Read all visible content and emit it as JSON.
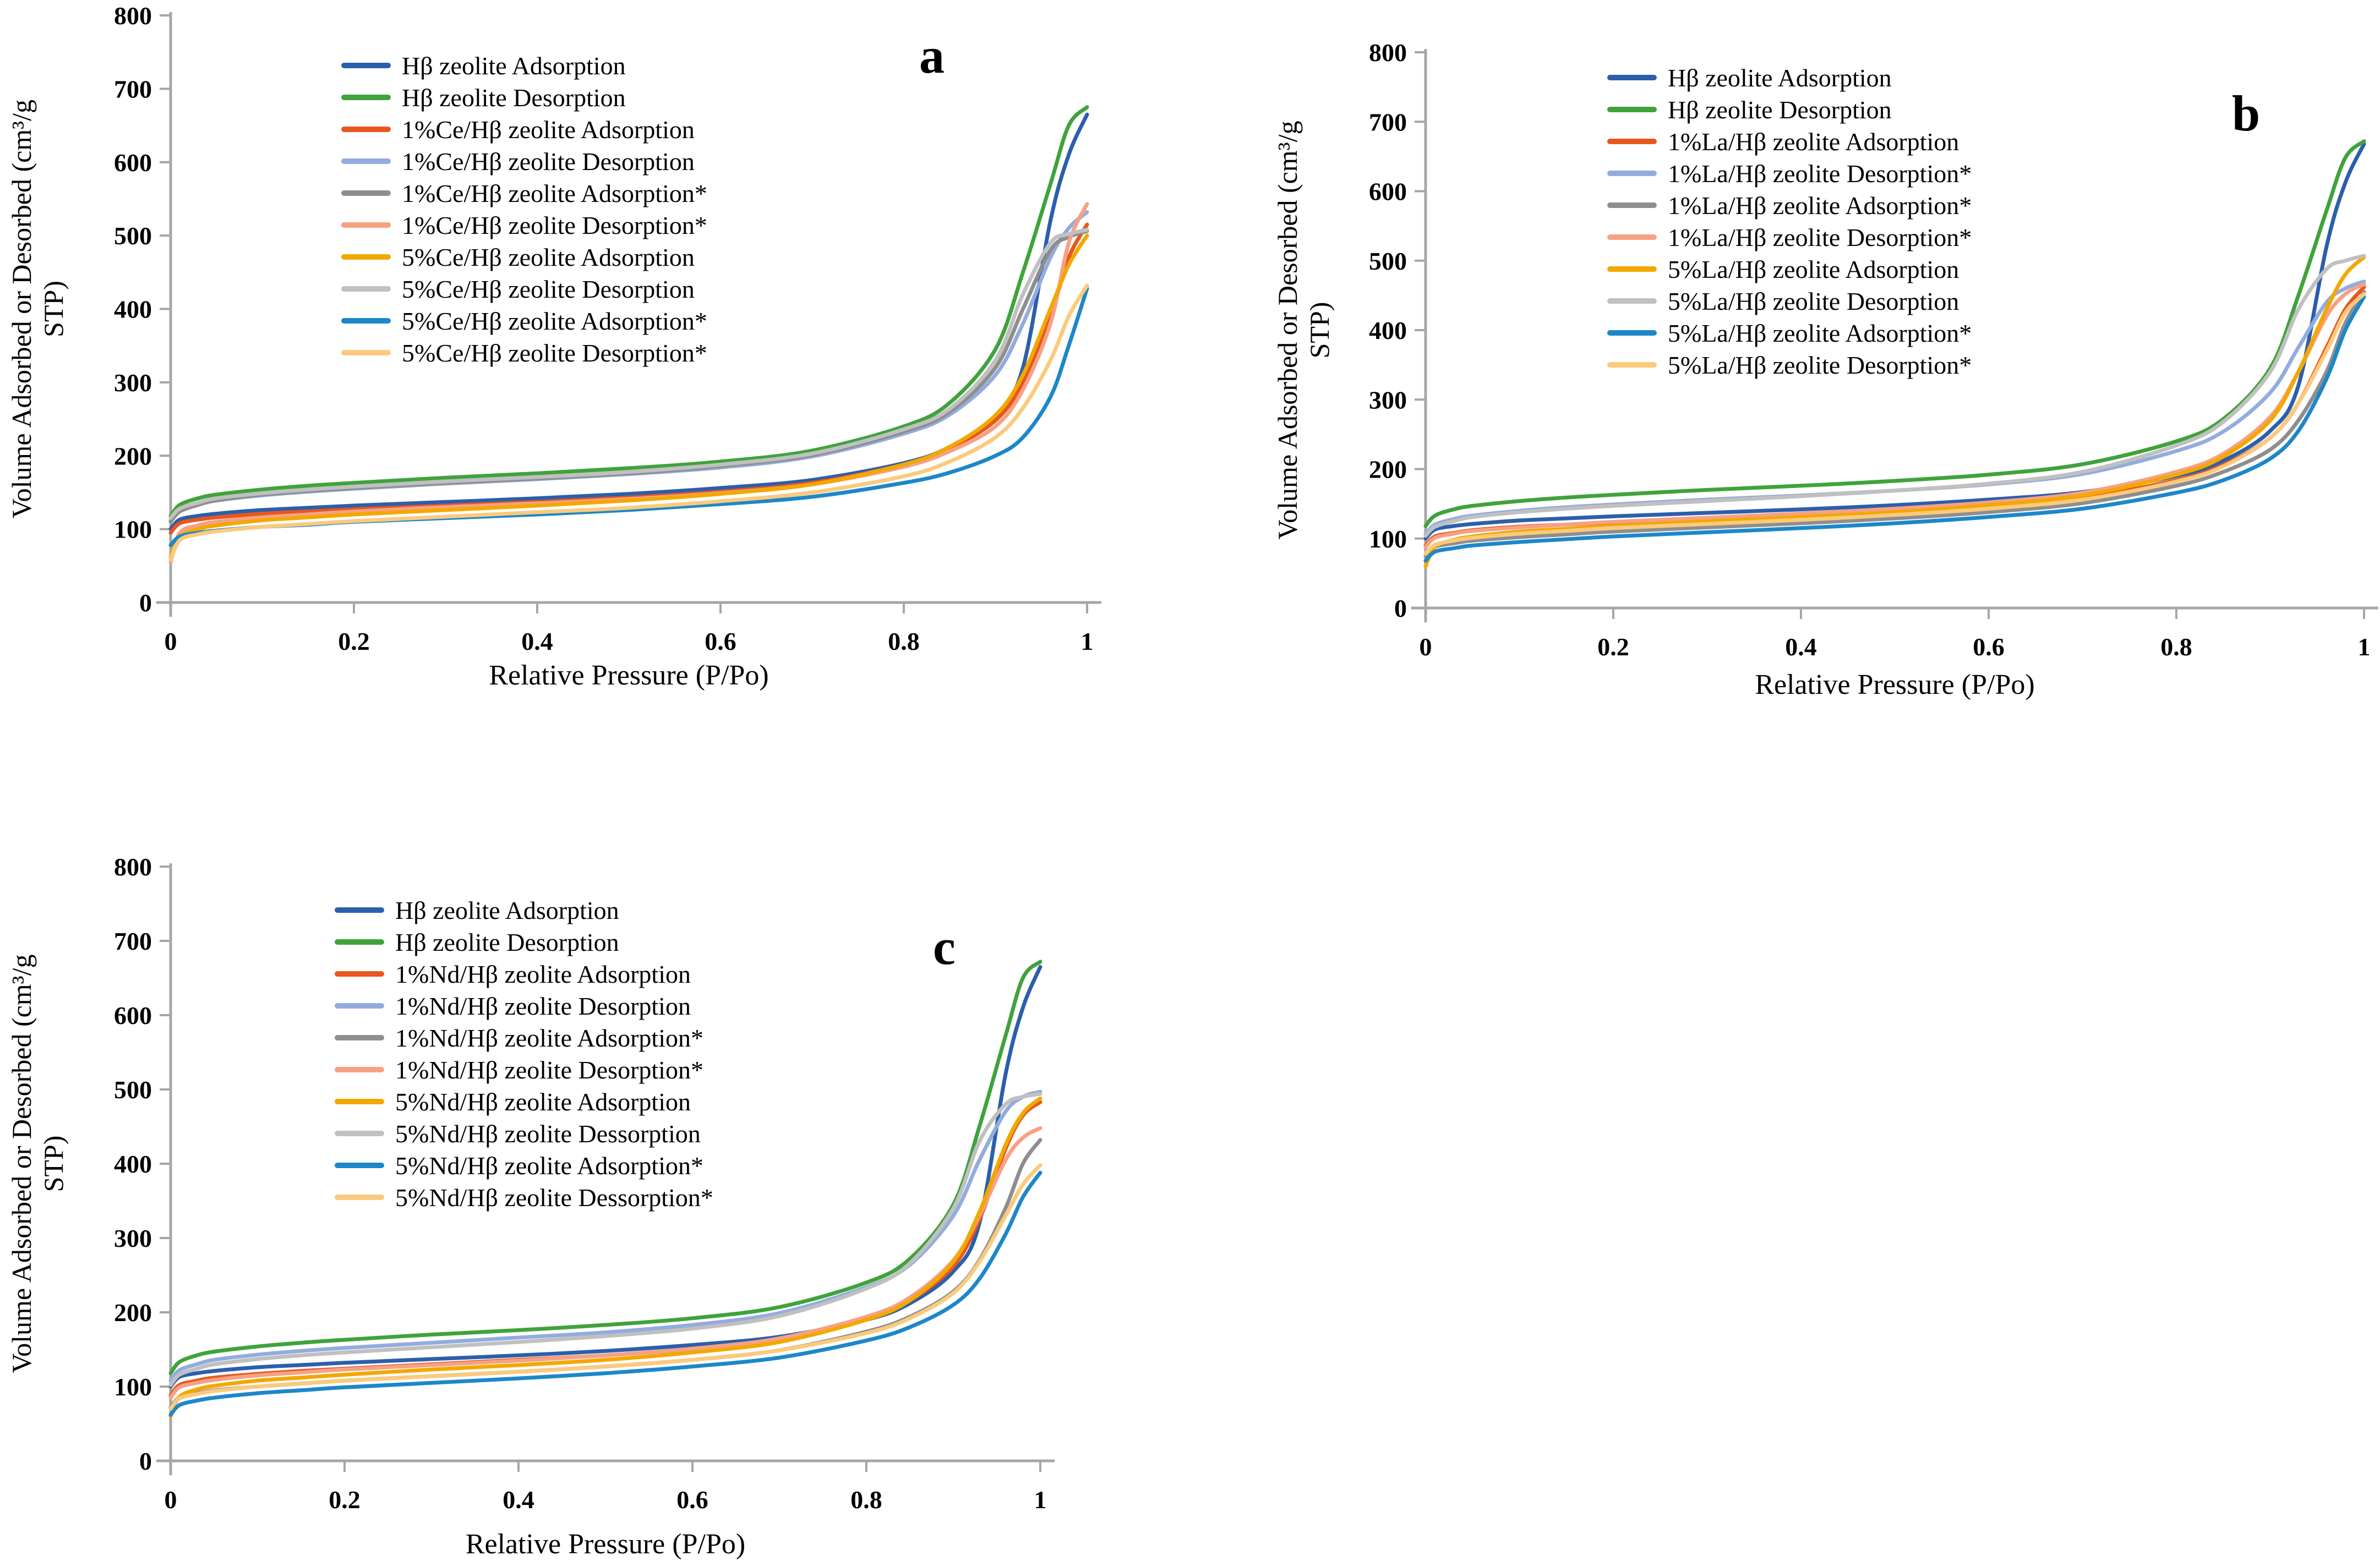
{
  "figure": {
    "background": "#FFFFFF",
    "axis_color": "#A6A6A6",
    "text_color": "#000000"
  },
  "chart_data": [
    {
      "panel_label": "a",
      "type": "line",
      "title": "",
      "xlabel": "Relative Pressure (P/Po)",
      "ylabel": "Volume Adsorbed or Desorbed (cm³/g STP)",
      "ylabel_lines": [
        "Volume Adsorbed or Desorbed (cm³/g",
        "STP)"
      ],
      "xlim": [
        0,
        1
      ],
      "ylim": [
        0,
        800
      ],
      "xticks": [
        0,
        0.2,
        0.4,
        0.6,
        0.8,
        1
      ],
      "yticks": [
        0,
        100,
        200,
        300,
        400,
        500,
        600,
        700,
        800
      ],
      "grid": false,
      "legend_position": "upper left inside",
      "x": [
        0,
        0.01,
        0.03,
        0.05,
        0.1,
        0.15,
        0.2,
        0.3,
        0.4,
        0.5,
        0.6,
        0.7,
        0.8,
        0.85,
        0.9,
        0.93,
        0.96,
        0.98,
        1
      ],
      "series": [
        {
          "name": "Hβ zeolite Adsorption",
          "color": "#2B5FAC",
          "values": [
            100,
            113,
            118,
            121,
            126,
            129,
            132,
            137,
            142,
            148,
            156,
            167,
            190,
            212,
            255,
            320,
            520,
            610,
            665
          ]
        },
        {
          "name": "Hβ zeolite Desorption",
          "color": "#3FA33C",
          "values": [
            118,
            133,
            142,
            147,
            154,
            159,
            163,
            170,
            176,
            183,
            192,
            207,
            240,
            272,
            345,
            450,
            570,
            650,
            675
          ]
        },
        {
          "name": "1%Ce/Hβ zeolite Adsorption",
          "color": "#E8571E",
          "values": [
            95,
            108,
            113,
            116,
            121,
            124,
            127,
            132,
            137,
            143,
            151,
            163,
            188,
            210,
            248,
            300,
            390,
            470,
            515
          ]
        },
        {
          "name": "1%Ce/Hβ zeolite Desorption",
          "color": "#93ACDE",
          "values": [
            112,
            126,
            134,
            139,
            146,
            151,
            155,
            162,
            168,
            175,
            184,
            199,
            230,
            256,
            310,
            380,
            470,
            510,
            532
          ]
        },
        {
          "name": "1%Ce/Hβ zeolite Adsorption*",
          "color": "#8E8E8E",
          "values": [
            110,
            124,
            133,
            139,
            147,
            152,
            156,
            163,
            169,
            176,
            186,
            201,
            233,
            260,
            320,
            400,
            480,
            498,
            506
          ]
        },
        {
          "name": "1%Ce/Hβ zeolite Desorption*",
          "color": "#F7A183",
          "values": [
            55,
            95,
            105,
            110,
            116,
            120,
            124,
            130,
            135,
            141,
            149,
            161,
            185,
            206,
            240,
            290,
            380,
            490,
            543
          ]
        },
        {
          "name": "5%Ce/Hβ zeolite Adsorption",
          "color": "#F2A800",
          "values": [
            62,
            90,
            100,
            105,
            112,
            116,
            120,
            126,
            132,
            139,
            148,
            161,
            188,
            212,
            255,
            310,
            400,
            460,
            500
          ]
        },
        {
          "name": "5%Ce/Hβ zeolite Desorption",
          "color": "#C0C0C0",
          "values": [
            115,
            128,
            136,
            142,
            149,
            154,
            158,
            165,
            171,
            178,
            188,
            203,
            236,
            264,
            330,
            420,
            490,
            502,
            508
          ]
        },
        {
          "name": "5%Ce/Hβ zeolite Adsorption*",
          "color": "#1C87C9",
          "values": [
            78,
            90,
            95,
            98,
            103,
            106,
            110,
            115,
            120,
            126,
            134,
            144,
            163,
            177,
            200,
            225,
            280,
            350,
            428
          ]
        },
        {
          "name": "5%Ce/Hβ zeolite Desorption*",
          "color": "#FBCA7D",
          "values": [
            58,
            85,
            93,
            97,
            103,
            107,
            111,
            117,
            123,
            129,
            138,
            150,
            172,
            192,
            225,
            265,
            330,
            390,
            432
          ]
        }
      ]
    },
    {
      "panel_label": "b",
      "type": "line",
      "title": "",
      "xlabel": "Relative Pressure (P/Po)",
      "ylabel": "Volume Adsorbed or Desorbed (cm³/g STP)",
      "ylabel_lines": [
        "Volume Adsorbed or Desorbed (cm³/g",
        "STP)"
      ],
      "xlim": [
        0,
        1
      ],
      "ylim": [
        0,
        800
      ],
      "xticks": [
        0,
        0.2,
        0.4,
        0.6,
        0.8,
        1
      ],
      "yticks": [
        0,
        100,
        200,
        300,
        400,
        500,
        600,
        700,
        800
      ],
      "grid": false,
      "legend_position": "upper left inside",
      "x": [
        0,
        0.01,
        0.03,
        0.05,
        0.1,
        0.15,
        0.2,
        0.3,
        0.4,
        0.5,
        0.6,
        0.7,
        0.8,
        0.85,
        0.9,
        0.93,
        0.96,
        0.98,
        1
      ],
      "series": [
        {
          "name": "Hβ zeolite Adsorption",
          "color": "#2B5FAC",
          "values": [
            100,
            113,
            118,
            121,
            126,
            129,
            132,
            137,
            142,
            148,
            156,
            167,
            190,
            212,
            255,
            320,
            520,
            612,
            668
          ]
        },
        {
          "name": "Hβ zeolite Desorption",
          "color": "#3FA33C",
          "values": [
            118,
            133,
            142,
            147,
            154,
            159,
            163,
            170,
            176,
            183,
            192,
            207,
            240,
            272,
            345,
            450,
            572,
            648,
            672
          ]
        },
        {
          "name": "1%La/Hβ zeolite Adsorption",
          "color": "#E8571E",
          "values": [
            90,
            103,
            108,
            112,
            117,
            120,
            123,
            128,
            133,
            139,
            147,
            159,
            184,
            206,
            245,
            295,
            375,
            430,
            462
          ]
        },
        {
          "name": "1%La/Hβ zeolite Desorption*",
          "color": "#93ACDE",
          "values": [
            106,
            120,
            128,
            133,
            140,
            145,
            149,
            156,
            162,
            169,
            178,
            193,
            226,
            254,
            310,
            375,
            440,
            460,
            470
          ]
        },
        {
          "name": "1%La/Hβ zeolite Adsorption*",
          "color": "#8E8E8E",
          "values": [
            75,
            88,
            93,
            97,
            102,
            106,
            110,
            116,
            122,
            129,
            138,
            151,
            176,
            196,
            228,
            270,
            340,
            410,
            455
          ]
        },
        {
          "name": "1%La/Hβ zeolite Desorption*",
          "color": "#F7A183",
          "values": [
            88,
            101,
            107,
            111,
            116,
            120,
            124,
            130,
            136,
            143,
            152,
            166,
            196,
            222,
            275,
            340,
            420,
            452,
            466
          ]
        },
        {
          "name": "5%La/Hβ zeolite Adsorption",
          "color": "#F2A800",
          "values": [
            60,
            88,
            98,
            103,
            110,
            114,
            118,
            125,
            131,
            138,
            148,
            162,
            192,
            218,
            270,
            340,
            430,
            480,
            505
          ]
        },
        {
          "name": "5%La/Hβ zeolite Desorption",
          "color": "#C0C0C0",
          "values": [
            104,
            117,
            125,
            131,
            138,
            143,
            147,
            154,
            161,
            169,
            179,
            196,
            234,
            268,
            340,
            430,
            488,
            500,
            507
          ]
        },
        {
          "name": "5%La/Hβ zeolite Adsorption*",
          "color": "#1C87C9",
          "values": [
            68,
            81,
            86,
            90,
            95,
            99,
            103,
            109,
            115,
            122,
            131,
            143,
            166,
            184,
            215,
            255,
            330,
            400,
            448
          ]
        },
        {
          "name": "5%La/Hβ zeolite Desorption*",
          "color": "#FBCA7D",
          "values": [
            78,
            91,
            97,
            101,
            107,
            111,
            115,
            121,
            127,
            134,
            143,
            156,
            182,
            204,
            245,
            295,
            370,
            425,
            452
          ]
        }
      ]
    },
    {
      "panel_label": "c",
      "type": "line",
      "title": "",
      "xlabel": "Relative Pressure (P/Po)",
      "ylabel": "Volume Adsorbed or Desorbed (cm³/g STP)",
      "ylabel_lines": [
        "Volume Adsorbed or Desorbed (cm³/g",
        "STP)"
      ],
      "xlim": [
        0,
        1
      ],
      "ylim": [
        0,
        800
      ],
      "xticks": [
        0,
        0.2,
        0.4,
        0.6,
        0.8,
        1
      ],
      "yticks": [
        0,
        100,
        200,
        300,
        400,
        500,
        600,
        700,
        800
      ],
      "grid": false,
      "legend_position": "upper left inside",
      "x": [
        0,
        0.01,
        0.03,
        0.05,
        0.1,
        0.15,
        0.2,
        0.3,
        0.4,
        0.5,
        0.6,
        0.7,
        0.8,
        0.85,
        0.9,
        0.93,
        0.96,
        0.98,
        1
      ],
      "series": [
        {
          "name": "Hβ zeolite Adsorption",
          "color": "#2B5FAC",
          "values": [
            100,
            113,
            118,
            121,
            126,
            129,
            132,
            137,
            142,
            148,
            156,
            167,
            190,
            212,
            255,
            320,
            520,
            610,
            665
          ]
        },
        {
          "name": "Hβ zeolite Desorption",
          "color": "#3FA33C",
          "values": [
            118,
            133,
            142,
            147,
            154,
            159,
            163,
            170,
            176,
            183,
            192,
            207,
            240,
            272,
            345,
            450,
            572,
            650,
            672
          ]
        },
        {
          "name": "1%Nd/Hβ zeolite Adsorption",
          "color": "#E8571E",
          "values": [
            88,
            102,
            108,
            112,
            117,
            121,
            124,
            130,
            136,
            142,
            151,
            164,
            192,
            216,
            262,
            325,
            420,
            465,
            483
          ]
        },
        {
          "name": "1%Nd/Hβ zeolite Desorption",
          "color": "#93ACDE",
          "values": [
            108,
            122,
            130,
            136,
            143,
            148,
            152,
            159,
            166,
            173,
            183,
            199,
            234,
            264,
            330,
            405,
            470,
            490,
            497
          ]
        },
        {
          "name": "1%Nd/Hβ zeolite Adsorption*",
          "color": "#8E8E8E",
          "values": [
            72,
            85,
            91,
            95,
            100,
            104,
            108,
            114,
            120,
            127,
            136,
            149,
            174,
            194,
            228,
            270,
            340,
            400,
            432
          ]
        },
        {
          "name": "1%Nd/Hβ zeolite Desorption*",
          "color": "#F7A183",
          "values": [
            85,
            99,
            105,
            109,
            115,
            119,
            123,
            129,
            135,
            142,
            151,
            165,
            194,
            220,
            270,
            330,
            405,
            435,
            448
          ]
        },
        {
          "name": "5%Nd/Hβ zeolite Adsorption",
          "color": "#F2A800",
          "values": [
            60,
            86,
            96,
            101,
            108,
            112,
            116,
            123,
            129,
            136,
            146,
            160,
            190,
            216,
            268,
            335,
            425,
            468,
            488
          ]
        },
        {
          "name": "5%Nd/Hβ zeolite Dessorption",
          "color": "#C0C0C0",
          "values": [
            102,
            116,
            124,
            130,
            137,
            142,
            146,
            153,
            160,
            168,
            178,
            195,
            232,
            266,
            340,
            430,
            480,
            490,
            494
          ]
        },
        {
          "name": "5%Nd/Hβ zeolite Adsorption*",
          "color": "#1C87C9",
          "values": [
            62,
            75,
            81,
            85,
            91,
            95,
            99,
            105,
            111,
            118,
            127,
            139,
            162,
            180,
            210,
            245,
            305,
            355,
            388
          ]
        },
        {
          "name": "5%Nd/Hβ zeolite Dessorption*",
          "color": "#FBCA7D",
          "values": [
            70,
            84,
            90,
            94,
            100,
            104,
            108,
            114,
            120,
            127,
            136,
            149,
            172,
            192,
            226,
            268,
            330,
            372,
            398
          ]
        }
      ]
    }
  ]
}
